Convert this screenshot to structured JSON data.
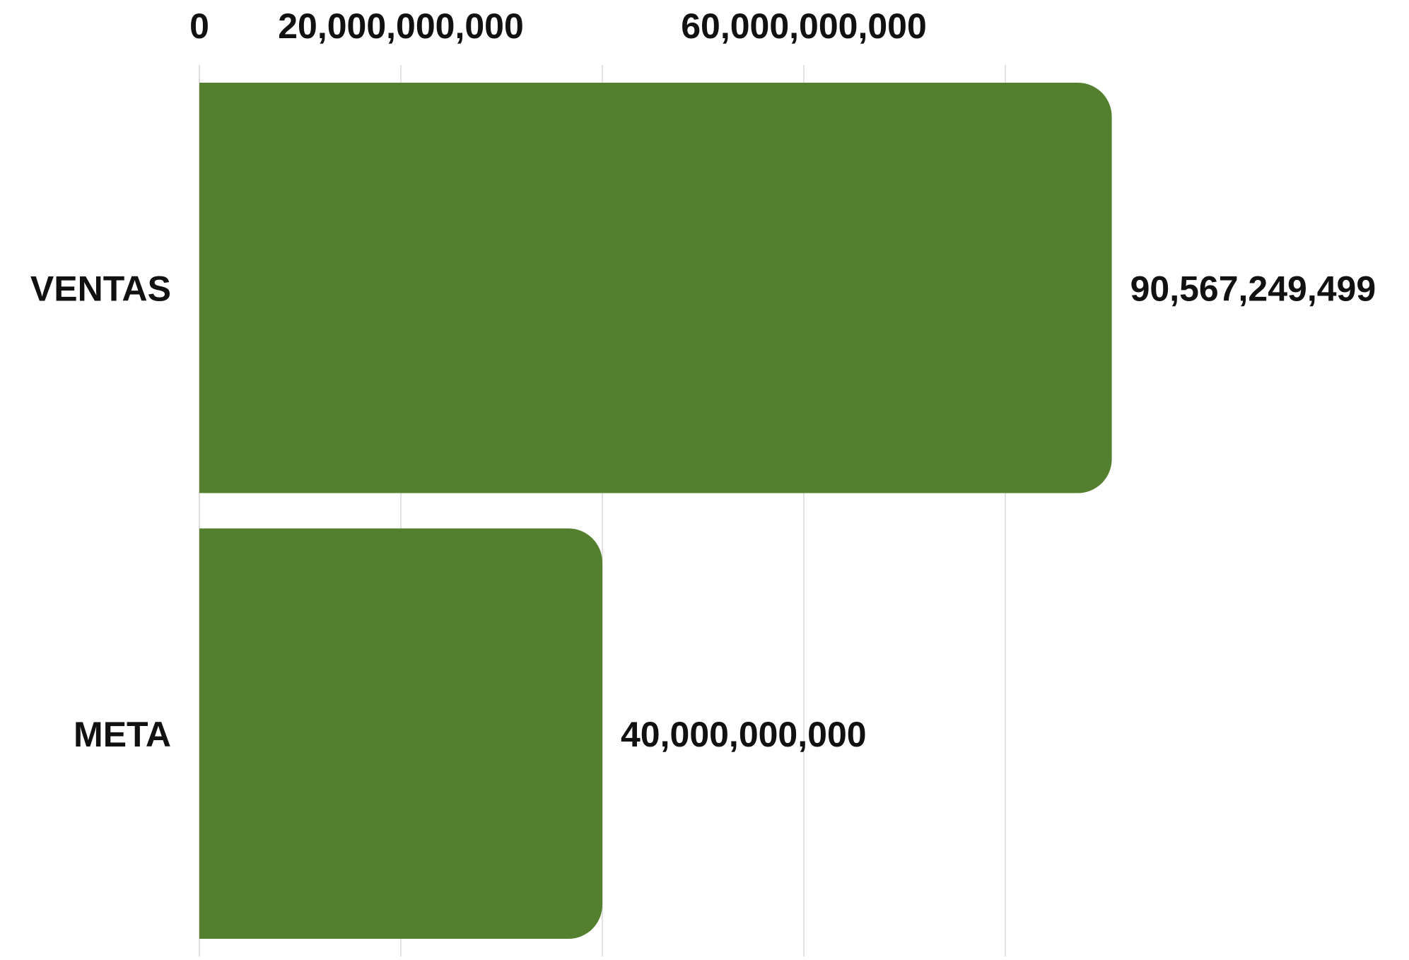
{
  "chart_data": {
    "type": "bar",
    "orientation": "horizontal",
    "categories": [
      "VENTAS",
      "META"
    ],
    "values": [
      90567249499,
      40000000000
    ],
    "value_labels": [
      "90,567,249,499",
      "40,000,000,000"
    ],
    "xlim": [
      0,
      100000000000
    ],
    "x_ticks": [
      {
        "value": 0,
        "label": "0"
      },
      {
        "value": 20000000000,
        "label": "20,000,000,000"
      },
      {
        "value": 40000000000,
        "label": ""
      },
      {
        "value": 60000000000,
        "label": "60,000,000,000"
      },
      {
        "value": 80000000000,
        "label": ""
      }
    ],
    "x_axis_position": "top",
    "grid": true,
    "legend": "none",
    "bar_color": "#547f2f",
    "grid_color": "#d9d9d9",
    "text_color": "#111111"
  }
}
